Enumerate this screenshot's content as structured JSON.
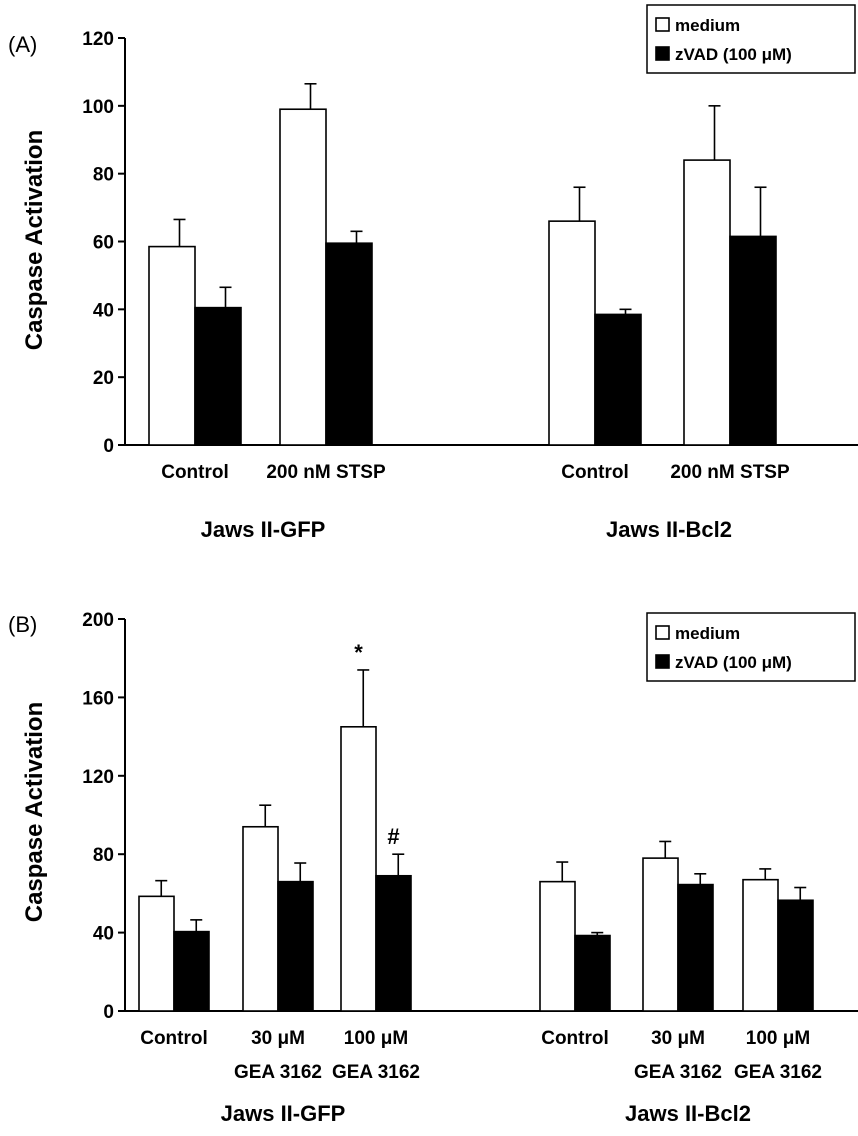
{
  "chart_data": [
    {
      "type": "bar",
      "panel_label": "(A)",
      "ylabel": "Caspase Activation",
      "ylim": [
        0,
        120
      ],
      "yticks": [
        0,
        20,
        40,
        60,
        80,
        100,
        120
      ],
      "grid": false,
      "legend_placement": "top-right",
      "series": [
        {
          "name": "medium",
          "fill": "#ffffff"
        },
        {
          "name": "zVAD (100 μM)",
          "fill": "#000000"
        }
      ],
      "groups": [
        {
          "label": "Jaws II-GFP",
          "categories": [
            {
              "label_lines": [
                "Control"
              ],
              "values": [
                58.5,
                40.5
              ],
              "errors": [
                8,
                6
              ]
            },
            {
              "label_lines": [
                "200 nM STSP"
              ],
              "values": [
                99,
                59.5
              ],
              "errors": [
                7.5,
                3.5
              ]
            }
          ]
        },
        {
          "label": "Jaws II-Bcl2",
          "categories": [
            {
              "label_lines": [
                "Control"
              ],
              "values": [
                66,
                38.5
              ],
              "errors": [
                10,
                1.5
              ]
            },
            {
              "label_lines": [
                "200 nM STSP"
              ],
              "values": [
                84,
                61.5
              ],
              "errors": [
                16,
                14.5
              ]
            }
          ]
        }
      ],
      "annotations": []
    },
    {
      "type": "bar",
      "panel_label": "(B)",
      "ylabel": "Caspase Activation",
      "ylim": [
        0,
        200
      ],
      "yticks": [
        0,
        40,
        80,
        120,
        160,
        200
      ],
      "grid": false,
      "legend_placement": "top-right",
      "series": [
        {
          "name": "medium",
          "fill": "#ffffff"
        },
        {
          "name": "zVAD (100 μM)",
          "fill": "#000000"
        }
      ],
      "groups": [
        {
          "label": "Jaws II-GFP",
          "categories": [
            {
              "label_lines": [
                "Control"
              ],
              "values": [
                58.5,
                40.5
              ],
              "errors": [
                8,
                6
              ]
            },
            {
              "label_lines": [
                "30 μM",
                "GEA 3162"
              ],
              "values": [
                94,
                66
              ],
              "errors": [
                11,
                9.5
              ]
            },
            {
              "label_lines": [
                "100 μM",
                "GEA 3162"
              ],
              "values": [
                145,
                69
              ],
              "errors": [
                29,
                11
              ]
            }
          ]
        },
        {
          "label": "Jaws II-Bcl2",
          "categories": [
            {
              "label_lines": [
                "Control"
              ],
              "values": [
                66,
                38.5
              ],
              "errors": [
                10,
                1.5
              ]
            },
            {
              "label_lines": [
                "30 μM",
                "GEA 3162"
              ],
              "values": [
                78,
                64.5
              ],
              "errors": [
                8.5,
                5.5
              ]
            },
            {
              "label_lines": [
                "100 μM",
                "GEA 3162"
              ],
              "values": [
                67,
                56.5
              ],
              "errors": [
                5.5,
                6.5
              ]
            }
          ]
        }
      ],
      "annotations": [
        {
          "text": "*",
          "group": 0,
          "category": 2,
          "series": 0
        },
        {
          "text": "#",
          "group": 0,
          "category": 2,
          "series": 1
        }
      ]
    }
  ]
}
